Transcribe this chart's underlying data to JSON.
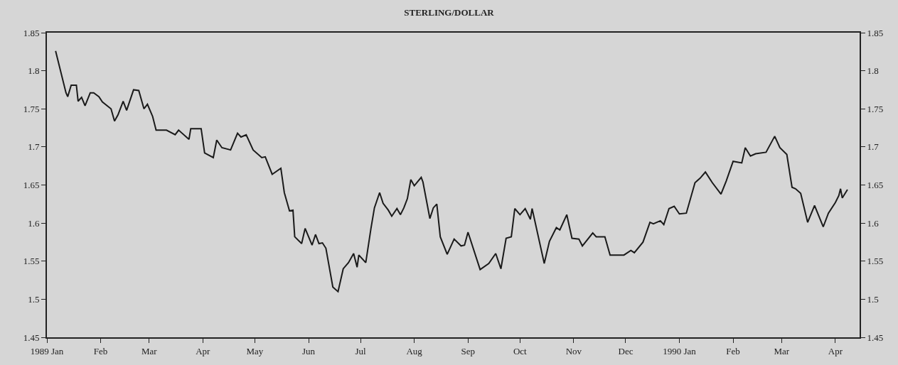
{
  "chart_data": {
    "type": "line",
    "title": "STERLING/DOLLAR",
    "x": [
      "1989-01-06",
      "1989-01-12",
      "1989-01-13",
      "1989-01-15",
      "1989-01-18",
      "1989-01-19",
      "1989-01-21",
      "1989-01-23",
      "1989-01-26",
      "1989-01-28",
      "1989-01-31",
      "1989-02-02",
      "1989-02-07",
      "1989-02-09",
      "1989-02-11",
      "1989-02-14",
      "1989-02-16",
      "1989-02-20",
      "1989-02-23",
      "1989-02-26",
      "1989-02-28",
      "1989-03-03",
      "1989-03-05",
      "1989-03-11",
      "1989-03-16",
      "1989-03-18",
      "1989-03-24",
      "1989-03-25",
      "1989-03-31",
      "1989-04-02",
      "1989-04-07",
      "1989-04-09",
      "1989-04-12",
      "1989-04-17",
      "1989-04-21",
      "1989-04-23",
      "1989-04-26",
      "1989-04-30",
      "1989-05-05",
      "1989-05-07",
      "1989-05-11",
      "1989-05-16",
      "1989-05-18",
      "1989-05-21",
      "1989-05-23",
      "1989-05-24",
      "1989-05-28",
      "1989-05-30",
      "1989-06-03",
      "1989-06-05",
      "1989-06-07",
      "1989-06-09",
      "1989-06-11",
      "1989-06-15",
      "1989-06-18",
      "1989-06-21",
      "1989-06-24",
      "1989-06-27",
      "1989-06-29",
      "1989-06-30",
      "1989-07-04",
      "1989-07-07",
      "1989-07-09",
      "1989-07-12",
      "1989-07-14",
      "1989-07-17",
      "1989-07-19",
      "1989-07-22",
      "1989-07-24",
      "1989-07-26",
      "1989-07-28",
      "1989-07-30",
      "1989-08-01",
      "1989-08-05",
      "1989-08-06",
      "1989-08-10",
      "1989-08-12",
      "1989-08-14",
      "1989-08-16",
      "1989-08-20",
      "1989-08-24",
      "1989-08-28",
      "1989-08-30",
      "1989-09-01",
      "1989-09-08",
      "1989-09-13",
      "1989-09-17",
      "1989-09-20",
      "1989-09-23",
      "1989-09-26",
      "1989-09-28",
      "1989-10-01",
      "1989-10-04",
      "1989-10-07",
      "1989-10-08",
      "1989-10-15",
      "1989-10-18",
      "1989-10-22",
      "1989-10-24",
      "1989-10-28",
      "1989-10-31",
      "1989-11-04",
      "1989-11-06",
      "1989-11-12",
      "1989-11-14",
      "1989-11-19",
      "1989-11-22",
      "1989-11-30",
      "1989-12-04",
      "1989-12-06",
      "1989-12-11",
      "1989-12-15",
      "1989-12-17",
      "1989-12-21",
      "1989-12-23",
      "1989-12-26",
      "1989-12-29",
      "1990-01-01",
      "1990-01-05",
      "1990-01-10",
      "1990-01-13",
      "1990-01-16",
      "1990-01-20",
      "1990-01-25",
      "1990-01-28",
      "1990-02-01",
      "1990-02-06",
      "1990-02-08",
      "1990-02-11",
      "1990-02-14",
      "1990-02-20",
      "1990-02-25",
      "1990-02-28",
      "1990-03-04",
      "1990-03-07",
      "1990-03-09",
      "1990-03-12",
      "1990-03-16",
      "1990-03-20",
      "1990-03-25",
      "1990-03-28",
      "1990-04-01",
      "1990-04-03",
      "1990-04-04",
      "1990-04-05",
      "1990-04-08"
    ],
    "series": [
      {
        "color": "#1a1a1a",
        "values": [
          1.826,
          1.771,
          1.766,
          1.781,
          1.781,
          1.76,
          1.765,
          1.754,
          1.771,
          1.771,
          1.766,
          1.759,
          1.75,
          1.734,
          1.742,
          1.76,
          1.748,
          1.775,
          1.774,
          1.75,
          1.756,
          1.74,
          1.722,
          1.722,
          1.716,
          1.722,
          1.71,
          1.724,
          1.724,
          1.692,
          1.686,
          1.709,
          1.699,
          1.696,
          1.718,
          1.713,
          1.716,
          1.696,
          1.686,
          1.687,
          1.664,
          1.672,
          1.64,
          1.616,
          1.617,
          1.582,
          1.573,
          1.593,
          1.571,
          1.585,
          1.573,
          1.574,
          1.567,
          1.516,
          1.51,
          1.54,
          1.548,
          1.56,
          1.542,
          1.558,
          1.548,
          1.593,
          1.62,
          1.64,
          1.626,
          1.617,
          1.609,
          1.619,
          1.611,
          1.62,
          1.632,
          1.657,
          1.649,
          1.66,
          1.654,
          1.606,
          1.62,
          1.625,
          1.582,
          1.559,
          1.579,
          1.57,
          1.571,
          1.588,
          1.539,
          1.547,
          1.56,
          1.54,
          1.58,
          1.582,
          1.619,
          1.611,
          1.619,
          1.605,
          1.619,
          1.547,
          1.576,
          1.594,
          1.591,
          1.611,
          1.58,
          1.579,
          1.57,
          1.587,
          1.582,
          1.582,
          1.558,
          1.558,
          1.564,
          1.561,
          1.575,
          1.601,
          1.599,
          1.603,
          1.598,
          1.619,
          1.622,
          1.612,
          1.613,
          1.653,
          1.659,
          1.667,
          1.653,
          1.638,
          1.655,
          1.681,
          1.679,
          1.699,
          1.688,
          1.691,
          1.693,
          1.714,
          1.699,
          1.69,
          1.647,
          1.645,
          1.639,
          1.601,
          1.623,
          1.595,
          1.613,
          1.627,
          1.636,
          1.645,
          1.633,
          1.644
        ]
      }
    ],
    "xlim": [
      "1989-01-01",
      "1990-04-15"
    ],
    "xticks": [
      {
        "value": "1989-01-01",
        "label": "1989 Jan"
      },
      {
        "value": "1989-02-01",
        "label": "Feb"
      },
      {
        "value": "1989-03-01",
        "label": "Mar"
      },
      {
        "value": "1989-04-01",
        "label": "Apr"
      },
      {
        "value": "1989-05-01",
        "label": "May"
      },
      {
        "value": "1989-06-01",
        "label": "Jun"
      },
      {
        "value": "1989-07-01",
        "label": "Jul"
      },
      {
        "value": "1989-08-01",
        "label": "Aug"
      },
      {
        "value": "1989-09-01",
        "label": "Sep"
      },
      {
        "value": "1989-10-01",
        "label": "Oct"
      },
      {
        "value": "1989-11-01",
        "label": "Nov"
      },
      {
        "value": "1989-12-01",
        "label": "Dec"
      },
      {
        "value": "1990-01-01",
        "label": "1990 Jan"
      },
      {
        "value": "1990-02-01",
        "label": "Feb"
      },
      {
        "value": "1990-03-01",
        "label": "Mar"
      },
      {
        "value": "1990-04-01",
        "label": "Apr"
      }
    ],
    "ylim": [
      1.45,
      1.85
    ],
    "yticks": [
      1.45,
      1.5,
      1.55,
      1.6,
      1.65,
      1.7,
      1.75,
      1.8,
      1.85
    ],
    "y2lim": [
      1.45,
      1.85
    ],
    "y2ticks": [
      1.45,
      1.5,
      1.55,
      1.6,
      1.65,
      1.7,
      1.75,
      1.8,
      1.85
    ],
    "grid": false,
    "marker": "none",
    "line_style": "solid"
  }
}
